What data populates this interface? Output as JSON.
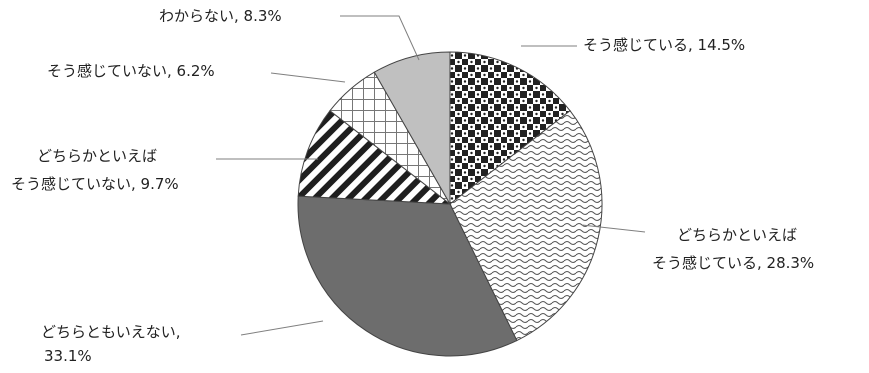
{
  "chart_data": {
    "type": "pie",
    "title": "",
    "start": "12 o'clock",
    "direction": "clockwise",
    "slices": [
      {
        "label": "そう感じている",
        "value": 14.5,
        "value_text": "14.5%",
        "fill": "checker",
        "text": [
          "そう感じている, 14.5%"
        ]
      },
      {
        "label": "どちらかといえばそう感じている",
        "value": 28.3,
        "value_text": "28.3%",
        "fill": "wave",
        "text": [
          "どちらかといえば",
          "そう感じている, 28.3%"
        ]
      },
      {
        "label": "どちらともいえない",
        "value": 33.1,
        "value_text": "33.1%",
        "fill": "#6d6d6d",
        "text": [
          "どちらともいえない,",
          "33.1%"
        ]
      },
      {
        "label": "どちらかといえばそう感じていない",
        "value": 9.7,
        "value_text": "9.7%",
        "fill": "diagonal-stripes",
        "text": [
          "どちらかといえば",
          "そう感じていない, 9.7%"
        ]
      },
      {
        "label": "そう感じていない",
        "value": 6.2,
        "value_text": "6.2%",
        "fill": "grid",
        "text": [
          "そう感じていない, 6.2%"
        ]
      },
      {
        "label": "わからない",
        "value": 8.3,
        "value_text": "8.3%",
        "fill": "#c0c0c0",
        "text": [
          "わからない, 8.3%"
        ]
      }
    ]
  }
}
